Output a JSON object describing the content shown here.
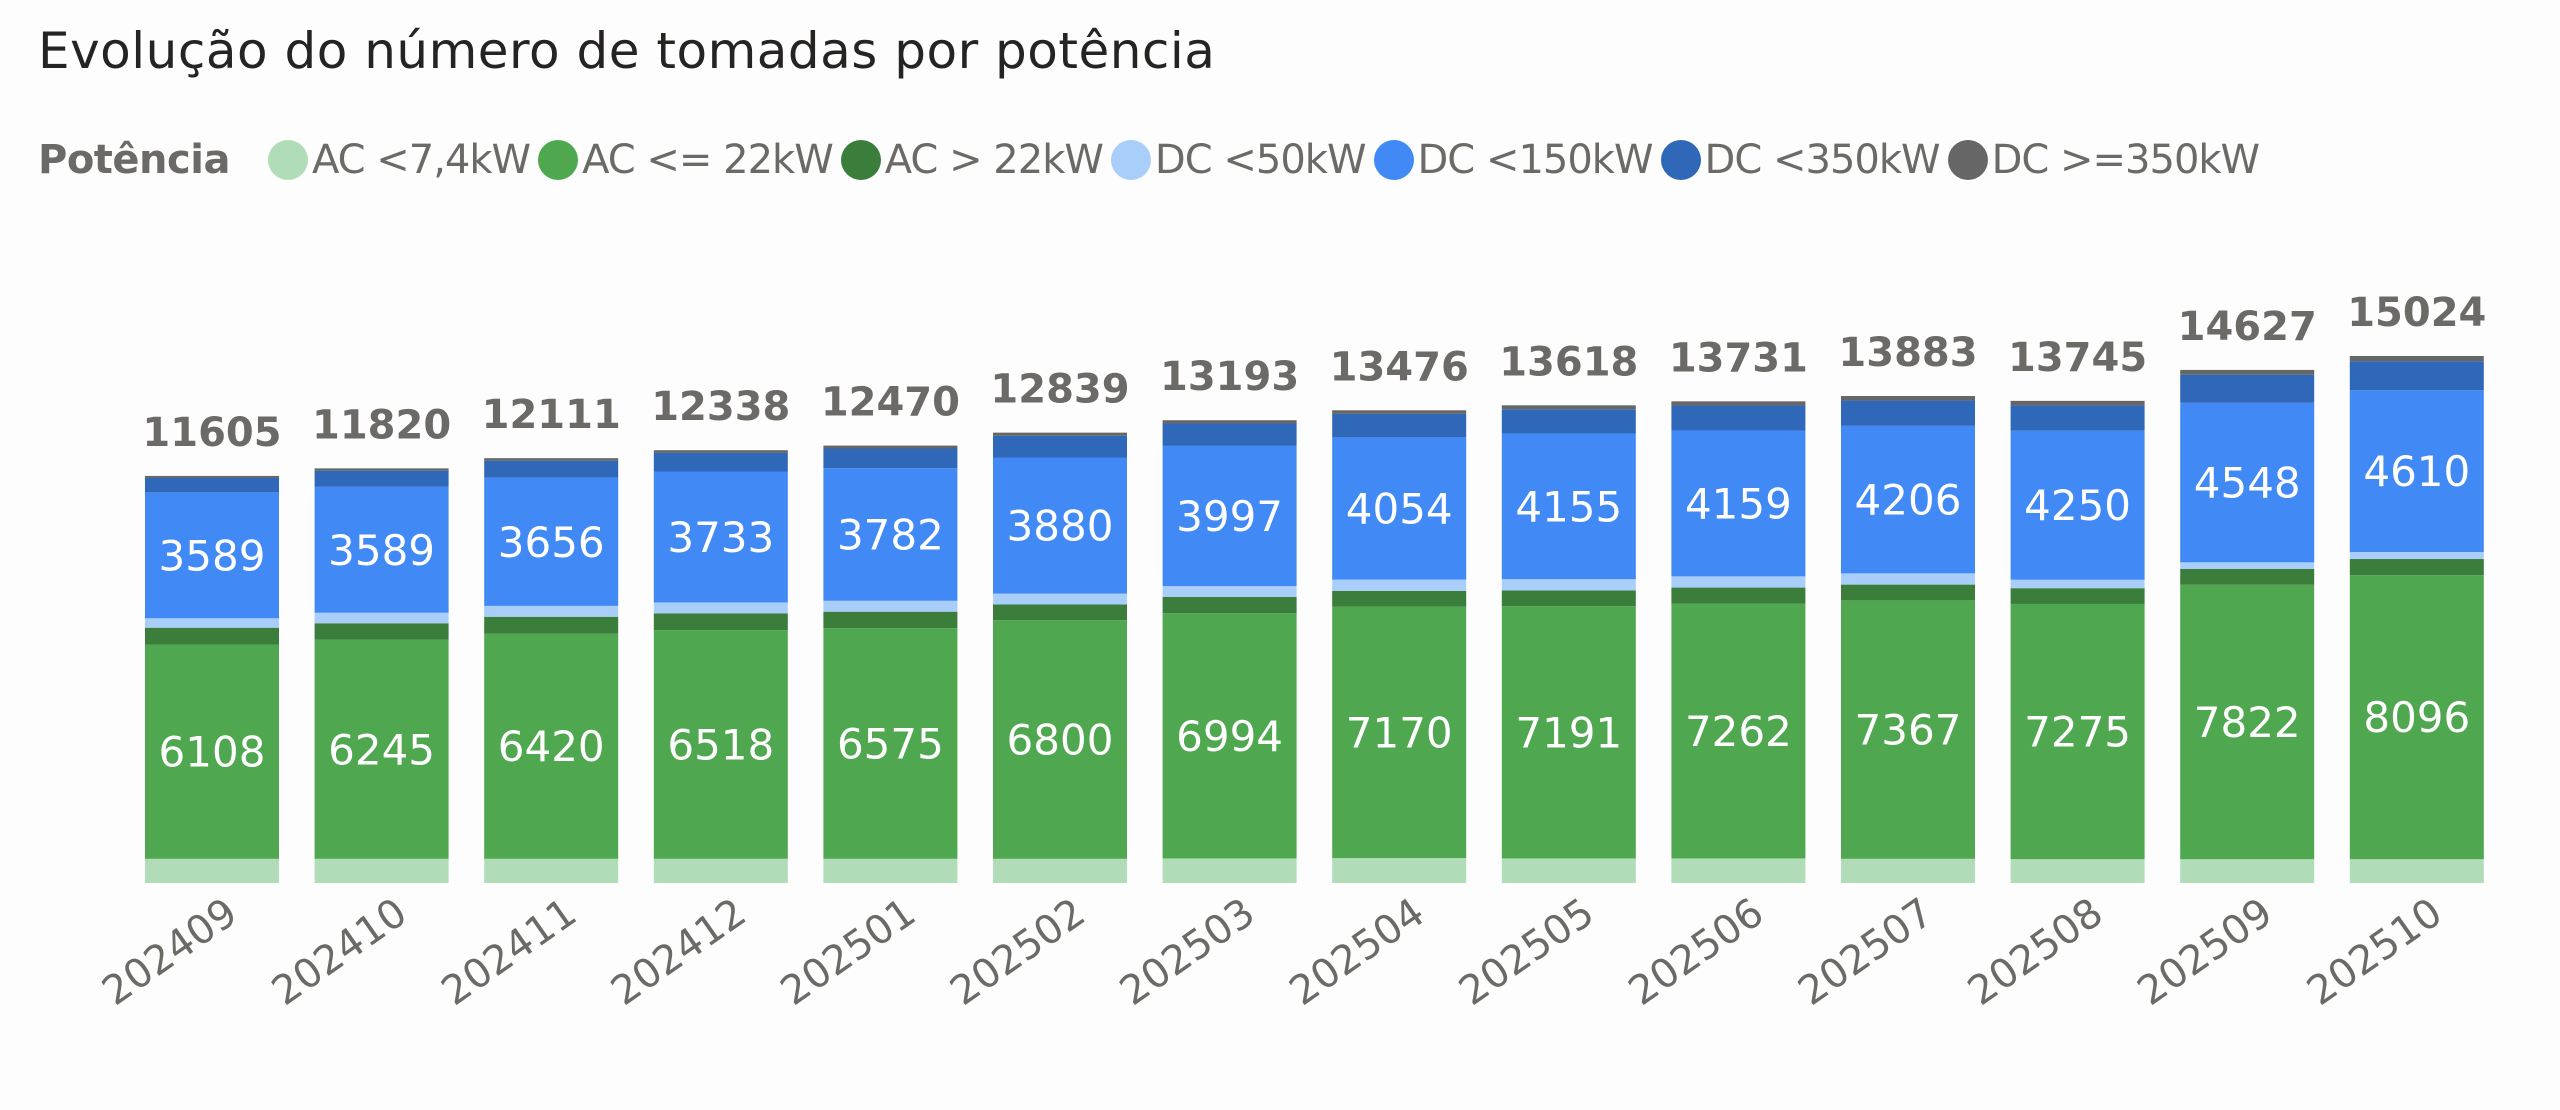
{
  "chart_data": {
    "type": "bar",
    "stacked": true,
    "title": "Evolução do número de tomadas por potência",
    "legend_title": "Potência",
    "legend_position": "top-left",
    "xlabel": "",
    "ylabel": "",
    "ylim": [
      0,
      15024
    ],
    "grid": false,
    "categories": [
      "202409",
      "202410",
      "202411",
      "202412",
      "202501",
      "202502",
      "202503",
      "202504",
      "202505",
      "202506",
      "202507",
      "202508",
      "202509",
      "202510"
    ],
    "series": [
      {
        "name": "AC <7,4kW",
        "color": "#b0dcb8",
        "show_labels": false,
        "values": [
          690,
          690,
          690,
          690,
          690,
          690,
          700,
          710,
          700,
          700,
          690,
          680,
          680,
          680
        ]
      },
      {
        "name": "AC <= 22kW",
        "color": "#4fa84f",
        "show_labels": true,
        "values": [
          6108,
          6245,
          6420,
          6518,
          6575,
          6800,
          6994,
          7170,
          7191,
          7262,
          7367,
          7275,
          7822,
          8096
        ]
      },
      {
        "name": "AC > 22kW",
        "color": "#3b7d3b",
        "show_labels": false,
        "values": [
          480,
          470,
          480,
          480,
          470,
          450,
          460,
          450,
          450,
          460,
          450,
          450,
          450,
          460
        ]
      },
      {
        "name": "DC <50kW",
        "color": "#a9cef9",
        "show_labels": false,
        "values": [
          270,
          300,
          310,
          310,
          310,
          310,
          310,
          320,
          320,
          320,
          320,
          240,
          190,
          200
        ]
      },
      {
        "name": "DC <150kW",
        "color": "#418af6",
        "show_labels": true,
        "values": [
          3589,
          3589,
          3656,
          3733,
          3782,
          3880,
          3997,
          4054,
          4155,
          4159,
          4206,
          4250,
          4548,
          4610
        ]
      },
      {
        "name": "DC <350kW",
        "color": "#2f67b9",
        "show_labels": false,
        "values": [
          410,
          460,
          480,
          530,
          560,
          620,
          640,
          670,
          690,
          710,
          720,
          720,
          800,
          830
        ]
      },
      {
        "name": "DC >=350kW",
        "color": "#666666",
        "show_labels": false,
        "values": [
          58,
          66,
          75,
          77,
          83,
          89,
          92,
          102,
          112,
          120,
          130,
          130,
          137,
          148
        ]
      }
    ],
    "totals": [
      11605,
      11820,
      12111,
      12338,
      12470,
      12839,
      13193,
      13476,
      13618,
      13731,
      13883,
      13745,
      14627,
      15024
    ]
  }
}
